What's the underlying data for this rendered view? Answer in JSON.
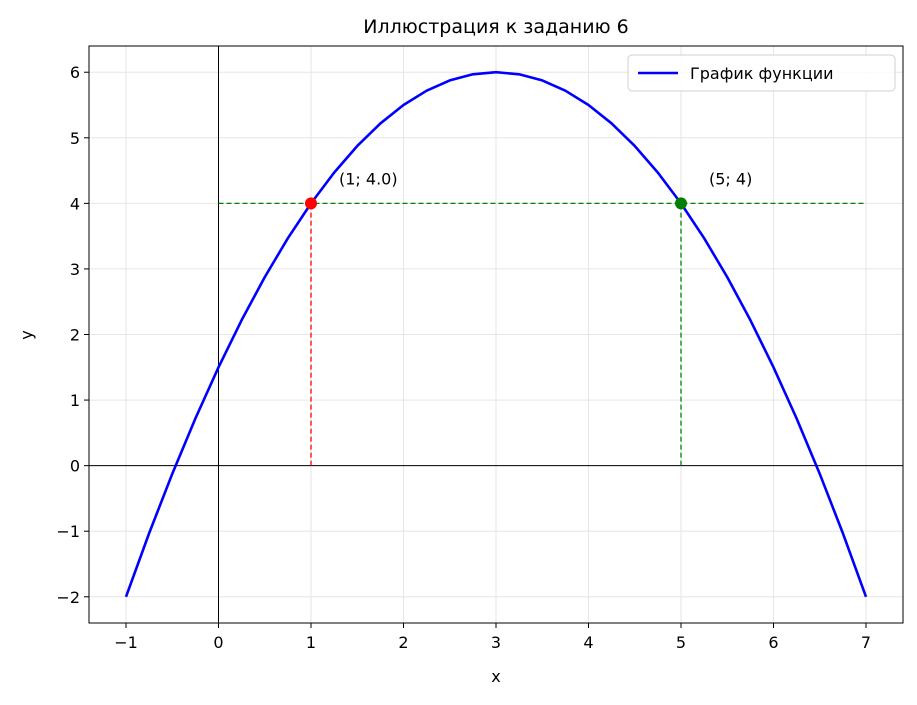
{
  "chart_data": {
    "type": "line",
    "title": "Иллюстрация к заданию 6",
    "x_label": "x",
    "y_label": "y",
    "x": [
      -1,
      -0.75,
      -0.5,
      -0.25,
      0,
      0.25,
      0.5,
      0.75,
      1,
      1.25,
      1.5,
      1.75,
      2,
      2.25,
      2.5,
      2.75,
      3,
      3.25,
      3.5,
      3.75,
      4,
      4.25,
      4.5,
      4.75,
      5,
      5.25,
      5.5,
      5.75,
      6,
      6.25,
      6.5,
      6.75,
      7
    ],
    "series": [
      {
        "name": "График функции",
        "color": "#0000ff",
        "values": [
          -2,
          -1.03125,
          -0.125,
          0.71875,
          1.5,
          2.21875,
          2.875,
          3.46875,
          4,
          4.46875,
          4.875,
          5.21875,
          5.5,
          5.71875,
          5.875,
          5.96875,
          6,
          5.96875,
          5.875,
          5.71875,
          5.5,
          5.21875,
          4.875,
          4.46875,
          4,
          3.46875,
          2.875,
          2.21875,
          1.5,
          0.71875,
          -0.125,
          -1.03125,
          -2
        ]
      }
    ],
    "points": [
      {
        "x": 1,
        "y": 4,
        "label": "(1; 4.0)",
        "color": "#ff0000",
        "label_color": "#000000"
      },
      {
        "x": 5,
        "y": 4,
        "label": "(5; 4)",
        "color": "#008000",
        "label_color": "#008000"
      }
    ],
    "hline": {
      "y": 4,
      "xmin": 0,
      "xmax": 7,
      "color": "#008000"
    },
    "xlim": [
      -1.4,
      7.4
    ],
    "ylim": [
      -2.4,
      6.4
    ],
    "xticks": [
      {
        "value": -1,
        "label": "−1"
      },
      0,
      1,
      2,
      3,
      4,
      5,
      6,
      7
    ],
    "yticks": [
      {
        "value": -2,
        "label": "−2"
      },
      {
        "value": -1,
        "label": "−1"
      },
      0,
      1,
      2,
      3,
      4,
      5,
      6
    ],
    "grid": true,
    "legend": "upper right"
  }
}
